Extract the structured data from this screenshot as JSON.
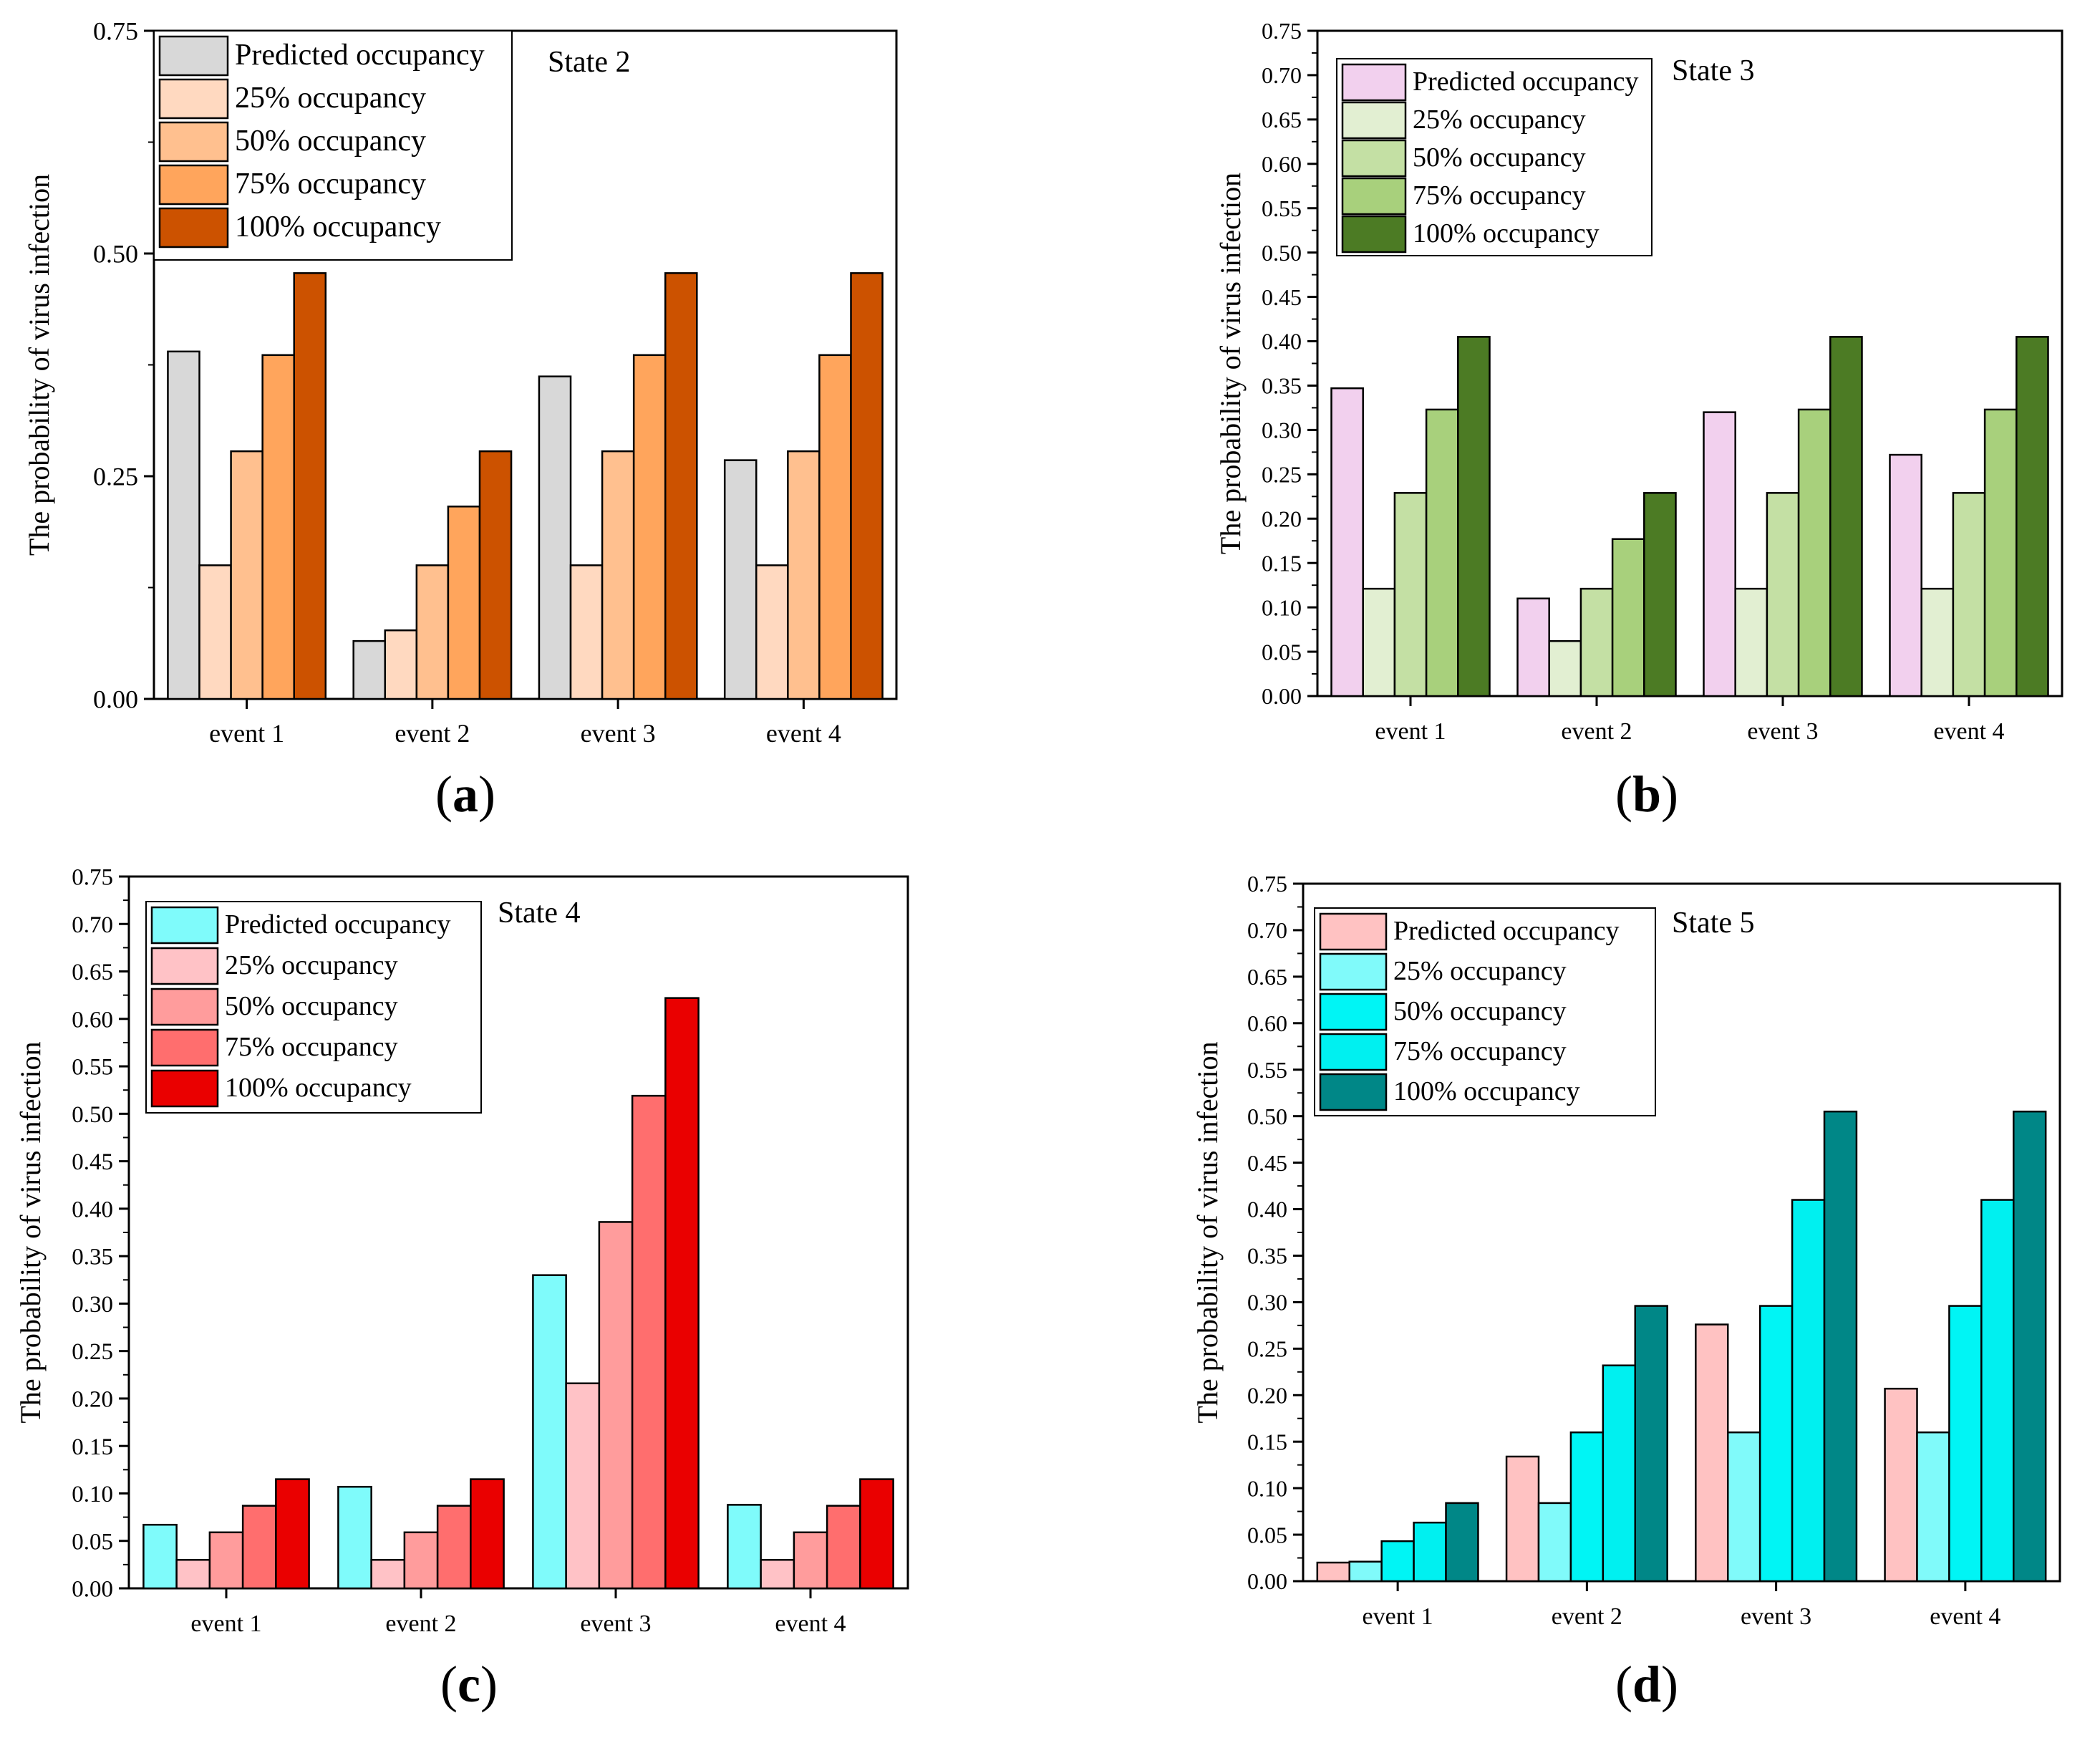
{
  "chart_data": [
    {
      "type": "bar",
      "panel_label": "a",
      "title": "State 2",
      "ylabel": "The probability of virus infection",
      "xlabel": "",
      "categories": [
        "event 1",
        "event 2",
        "event 3",
        "event 4"
      ],
      "ylim": [
        0,
        0.75
      ],
      "yticks": [
        "0.00",
        "0.25",
        "0.50",
        "0.75"
      ],
      "legend_position": "top-left",
      "series": [
        {
          "name": "Predicted occupancy",
          "color": "#d8d8d8",
          "values": [
            0.39,
            0.065,
            0.362,
            0.268
          ]
        },
        {
          "name": "25% occupancy",
          "color": "#ffd9c0",
          "values": [
            0.15,
            0.077,
            0.15,
            0.15
          ]
        },
        {
          "name": "50% occupancy",
          "color": "#ffc08f",
          "values": [
            0.278,
            0.15,
            0.278,
            0.278
          ]
        },
        {
          "name": "75% occupancy",
          "color": "#ffa55c",
          "values": [
            0.386,
            0.216,
            0.386,
            0.386
          ]
        },
        {
          "name": "100% occupancy",
          "color": "#cc5200",
          "values": [
            0.478,
            0.278,
            0.478,
            0.478
          ]
        }
      ]
    },
    {
      "type": "bar",
      "panel_label": "b",
      "title": "State 3",
      "ylabel": "The probability of virus infection",
      "xlabel": "",
      "categories": [
        "event 1",
        "event 2",
        "event 3",
        "event 4"
      ],
      "ylim": [
        0,
        0.75
      ],
      "yticks": [
        "0.00",
        "0.05",
        "0.10",
        "0.15",
        "0.20",
        "0.25",
        "0.30",
        "0.35",
        "0.40",
        "0.45",
        "0.50",
        "0.55",
        "0.60",
        "0.65",
        "0.70",
        "0.75"
      ],
      "legend_position": "top-left",
      "series": [
        {
          "name": "Predicted occupancy",
          "color": "#f2d0ee",
          "values": [
            0.347,
            0.11,
            0.32,
            0.272
          ]
        },
        {
          "name": "25% occupancy",
          "color": "#e2efd2",
          "values": [
            0.121,
            0.062,
            0.121,
            0.121
          ]
        },
        {
          "name": "50% occupancy",
          "color": "#c4e0a4",
          "values": [
            0.229,
            0.121,
            0.229,
            0.229
          ]
        },
        {
          "name": "75% occupancy",
          "color": "#a8d07c",
          "values": [
            0.323,
            0.177,
            0.323,
            0.323
          ]
        },
        {
          "name": "100% occupancy",
          "color": "#4c7b24",
          "values": [
            0.405,
            0.229,
            0.405,
            0.405
          ]
        }
      ]
    },
    {
      "type": "bar",
      "panel_label": "c",
      "title": "State 4",
      "ylabel": "The probability of virus infection",
      "xlabel": "",
      "categories": [
        "event 1",
        "event 2",
        "event 3",
        "event 4"
      ],
      "ylim": [
        0,
        0.75
      ],
      "yticks": [
        "0.00",
        "0.05",
        "0.10",
        "0.15",
        "0.20",
        "0.25",
        "0.30",
        "0.35",
        "0.40",
        "0.45",
        "0.50",
        "0.55",
        "0.60",
        "0.65",
        "0.70",
        "0.75"
      ],
      "legend_position": "top-left",
      "series": [
        {
          "name": "Predicted occupancy",
          "color": "#7ffbfb",
          "values": [
            0.067,
            0.107,
            0.33,
            0.088
          ]
        },
        {
          "name": "25% occupancy",
          "color": "#ffc2c6",
          "values": [
            0.03,
            0.03,
            0.216,
            0.03
          ]
        },
        {
          "name": "50% occupancy",
          "color": "#ff9c9c",
          "values": [
            0.059,
            0.059,
            0.386,
            0.059
          ]
        },
        {
          "name": "75% occupancy",
          "color": "#ff6e6e",
          "values": [
            0.087,
            0.087,
            0.519,
            0.087
          ]
        },
        {
          "name": "100% occupancy",
          "color": "#ea0000",
          "values": [
            0.115,
            0.115,
            0.622,
            0.115
          ]
        }
      ]
    },
    {
      "type": "bar",
      "panel_label": "d",
      "title": "State 5",
      "ylabel": "The probability of virus infection",
      "xlabel": "",
      "categories": [
        "event 1",
        "event 2",
        "event 3",
        "event 4"
      ],
      "ylim": [
        0,
        0.75
      ],
      "yticks": [
        "0.00",
        "0.05",
        "0.10",
        "0.15",
        "0.20",
        "0.25",
        "0.30",
        "0.35",
        "0.40",
        "0.45",
        "0.50",
        "0.55",
        "0.60",
        "0.65",
        "0.70",
        "0.75"
      ],
      "legend_position": "top-left",
      "series": [
        {
          "name": "Predicted occupancy",
          "color": "#ffc2c2",
          "values": [
            0.02,
            0.134,
            0.276,
            0.207
          ]
        },
        {
          "name": "25% occupancy",
          "color": "#80fafa",
          "values": [
            0.021,
            0.084,
            0.16,
            0.16
          ]
        },
        {
          "name": "50% occupancy",
          "color": "#00f5f5",
          "values": [
            0.043,
            0.16,
            0.296,
            0.296
          ]
        },
        {
          "name": "75% occupancy",
          "color": "#00f0f0",
          "values": [
            0.063,
            0.232,
            0.41,
            0.41
          ]
        },
        {
          "name": "100% occupancy",
          "color": "#008787",
          "values": [
            0.084,
            0.296,
            0.505,
            0.505
          ]
        }
      ]
    }
  ]
}
